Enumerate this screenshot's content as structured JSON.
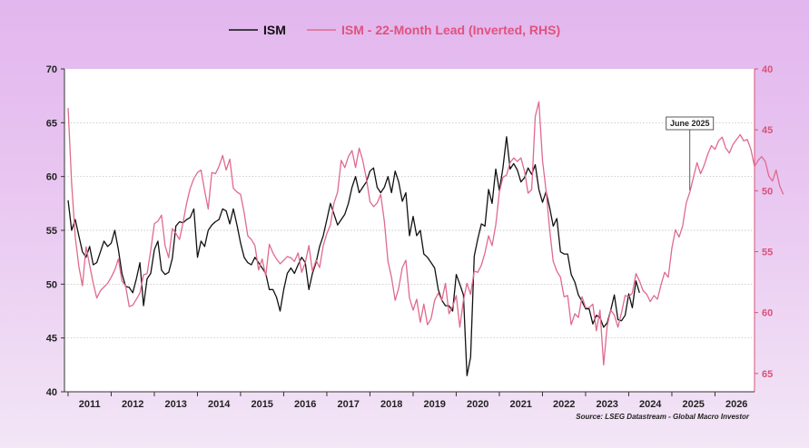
{
  "chart_data": {
    "type": "line",
    "legend": {
      "placement": "top-center",
      "items": [
        {
          "name": "ISM",
          "color": "#111111"
        },
        {
          "name": "ISM - 22-Month Lead (Inverted, RHS)",
          "color": "#e06a8e"
        }
      ]
    },
    "x_tick_labels": [
      "2011",
      "2012",
      "2013",
      "2014",
      "2015",
      "2016",
      "2017",
      "2018",
      "2019",
      "2020",
      "2021",
      "2022",
      "2023",
      "2024",
      "2025",
      "2026"
    ],
    "xlim": [
      "2010-12",
      "2026-12"
    ],
    "y_left": {
      "lim": [
        40,
        70
      ],
      "ticks": [
        40,
        45,
        50,
        55,
        60,
        65,
        70
      ]
    },
    "y_right": {
      "lim": [
        40,
        66.5
      ],
      "inverted": true,
      "ticks": [
        40,
        45,
        50,
        55,
        60,
        65
      ],
      "color": "#d9527a"
    },
    "grid": true,
    "annotation": {
      "text": "June 2025",
      "x": "2025-06"
    },
    "source": "Source: LSEG Datastream - Global Macro Investor",
    "series": [
      {
        "name": "ISM",
        "axis": "left",
        "color": "#111111",
        "start": "2011-01",
        "values": [
          57.8,
          55.0,
          56.0,
          54.5,
          53.0,
          52.5,
          53.5,
          51.8,
          52.0,
          53.0,
          54.0,
          53.5,
          53.8,
          55.0,
          53.2,
          51.0,
          49.8,
          49.7,
          49.2,
          50.5,
          52.0,
          48.0,
          50.5,
          51.0,
          53.2,
          54.0,
          51.3,
          50.9,
          51.1,
          52.4,
          55.4,
          55.8,
          55.7,
          56.0,
          56.2,
          57.0,
          52.5,
          54.0,
          53.5,
          55.0,
          55.5,
          55.8,
          56.0,
          57.0,
          56.8,
          55.6,
          57.0,
          55.5,
          53.8,
          52.5,
          52.0,
          51.8,
          52.5,
          52.0,
          51.5,
          51.0,
          49.5,
          49.5,
          48.8,
          47.5,
          49.5,
          51.0,
          51.5,
          51.0,
          51.8,
          52.5,
          52.0,
          49.5,
          51.0,
          52.0,
          53.5,
          54.5,
          56.0,
          57.5,
          56.5,
          55.5,
          56.0,
          56.5,
          57.5,
          59.0,
          60.0,
          58.5,
          59.0,
          59.5,
          60.5,
          60.8,
          59.0,
          58.5,
          59.0,
          60.0,
          58.5,
          60.5,
          59.5,
          57.7,
          58.5,
          54.5,
          56.3,
          54.5,
          55.0,
          52.8,
          52.5,
          52.0,
          51.5,
          49.5,
          48.5,
          48.0,
          48.0,
          47.5,
          50.9,
          50.0,
          49.0,
          41.5,
          43.2,
          52.6,
          54.2,
          55.6,
          55.4,
          58.8,
          57.5,
          60.7,
          58.7,
          60.8,
          63.7,
          60.7,
          61.2,
          60.6,
          59.5,
          59.9,
          60.8,
          60.2,
          61.1,
          58.8,
          57.6,
          58.6,
          57.1,
          55.4,
          56.1,
          53.0,
          52.8,
          52.8,
          50.9,
          50.2,
          49.0,
          48.4,
          47.7,
          47.7,
          46.3,
          47.1,
          46.9,
          46.0,
          46.4,
          47.6,
          49.0,
          46.7,
          46.6,
          47.1,
          49.1,
          47.8,
          50.3,
          49.2
        ]
      },
      {
        "name": "ISM - 22-Month Lead (Inverted, RHS)",
        "axis": "right",
        "color": "#e06a8e",
        "start": "2011-01",
        "values": [
          43.2,
          49.4,
          53.8,
          56.2,
          57.8,
          54.6,
          56.1,
          57.6,
          58.8,
          58.2,
          57.9,
          57.6,
          57.1,
          56.5,
          55.6,
          57.4,
          57.8,
          59.5,
          59.4,
          58.9,
          58.4,
          56.9,
          56.8,
          54.9,
          52.7,
          52.5,
          52.0,
          54.5,
          55.5,
          53.1,
          53.5,
          54.0,
          52.6,
          51.0,
          49.8,
          49.0,
          48.5,
          48.3,
          50.0,
          51.5,
          48.5,
          48.6,
          48.0,
          47.1,
          48.3,
          47.4,
          49.8,
          50.1,
          50.3,
          51.8,
          53.7,
          54.0,
          54.5,
          56.5,
          55.6,
          57.0,
          54.4,
          55.1,
          55.6,
          56.0,
          55.7,
          55.4,
          55.5,
          55.8,
          55.1,
          56.7,
          55.9,
          54.5,
          56.6,
          55.7,
          56.3,
          54.5,
          53.5,
          52.8,
          51.0,
          50.1,
          47.5,
          48.1,
          47.2,
          46.7,
          48.1,
          46.5,
          47.5,
          49.0,
          50.9,
          51.3,
          51.0,
          50.3,
          52.5,
          55.8,
          57.1,
          59.0,
          58.0,
          56.3,
          55.7,
          58.8,
          59.8,
          58.9,
          60.8,
          59.3,
          61.0,
          60.5,
          59.0,
          58.4,
          59.0,
          57.6,
          60.1,
          59.5,
          58.6,
          61.2,
          59.0,
          57.6,
          58.5,
          56.6,
          56.7,
          56.1,
          55.1,
          53.7,
          54.5,
          52.8,
          50.1,
          48.9,
          48.7,
          47.7,
          47.3,
          47.6,
          47.3,
          48.4,
          50.2,
          49.9,
          43.9,
          42.7,
          47.5,
          50.0,
          53.2,
          55.8,
          56.6,
          57.1,
          58.7,
          58.6,
          61.0,
          60.1,
          60.4,
          58.7,
          59.6,
          59.6,
          59.3,
          61.5,
          59.8,
          64.3,
          61.1,
          59.8,
          60.2,
          61.2,
          60.0,
          58.6,
          58.7,
          58.4,
          56.8,
          57.4,
          58.2,
          58.5,
          59.1,
          58.6,
          58.9,
          57.7,
          56.7,
          57.1,
          54.7,
          53.2,
          53.8,
          52.9,
          51.0,
          50.1,
          48.9,
          47.7,
          48.6,
          47.9,
          47.0,
          46.3,
          46.6,
          45.9,
          45.6,
          46.5,
          46.9,
          46.2,
          45.8,
          45.4,
          45.9,
          45.8,
          46.6,
          48.0,
          47.5,
          47.2,
          47.6,
          48.8,
          49.2,
          48.3,
          49.6,
          50.3
        ]
      }
    ]
  }
}
